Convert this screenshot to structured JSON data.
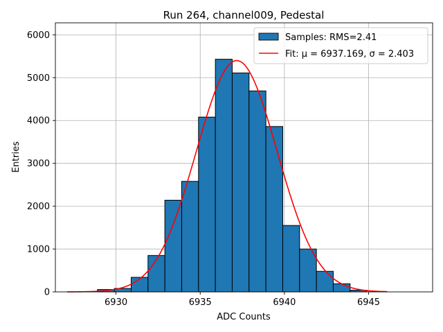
{
  "chart_data": {
    "type": "bar",
    "title": "Run 264, channel009, Pedestal",
    "xlabel": "ADC Counts",
    "ylabel": "Entries",
    "xlim": [
      6926.4,
      6948.8
    ],
    "ylim": [
      0,
      6280
    ],
    "xticks": [
      6930,
      6935,
      6940,
      6945
    ],
    "yticks": [
      0,
      1000,
      2000,
      3000,
      4000,
      5000,
      6000
    ],
    "grid": true,
    "legend_position": "top-right",
    "histogram": {
      "name": "Samples: RMS=2.41",
      "color": "#1f77b4",
      "edge_color": "#000000",
      "bin_edges": [
        6928.9,
        6929.9,
        6930.9,
        6931.9,
        6932.9,
        6933.9,
        6934.9,
        6935.9,
        6936.9,
        6937.9,
        6938.9,
        6939.9,
        6940.9,
        6941.9,
        6942.9,
        6943.9,
        6944.9
      ],
      "counts": [
        55,
        80,
        340,
        850,
        2140,
        2580,
        4080,
        5430,
        5110,
        4690,
        3860,
        1550,
        1000,
        480,
        190,
        40
      ]
    },
    "fit": {
      "name": "Fit: μ = 6937.169, σ = 2.403",
      "color": "#ff0000",
      "mu": 6937.169,
      "sigma": 2.403,
      "amplitude": 5400,
      "x_range": [
        6927.1,
        6946.1
      ]
    }
  }
}
